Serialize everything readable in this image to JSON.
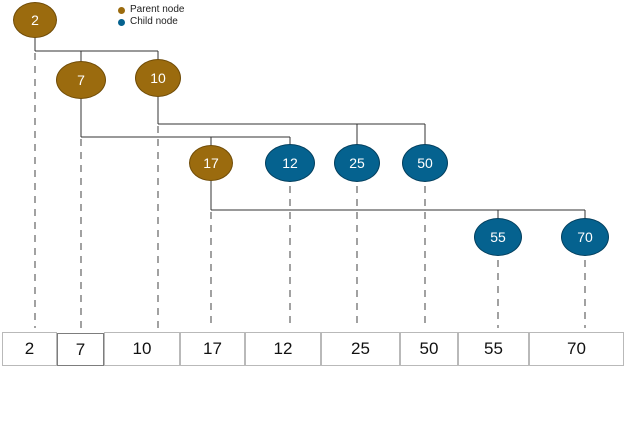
{
  "legend": {
    "parent_label": "Parent node",
    "child_label": "Child node"
  },
  "colors": {
    "parent": "#9b6b0e",
    "parent_border": "#6f4b06",
    "child": "#05628f",
    "child_border": "#033f5e",
    "line": "#333333"
  },
  "nodes": [
    {
      "id": "n2",
      "label": "2",
      "kind": "parent"
    },
    {
      "id": "n7",
      "label": "7",
      "kind": "parent"
    },
    {
      "id": "n10",
      "label": "10",
      "kind": "parent"
    },
    {
      "id": "n17",
      "label": "17",
      "kind": "parent"
    },
    {
      "id": "n12",
      "label": "12",
      "kind": "child"
    },
    {
      "id": "n25",
      "label": "25",
      "kind": "child"
    },
    {
      "id": "n50",
      "label": "50",
      "kind": "child"
    },
    {
      "id": "n55",
      "label": "55",
      "kind": "child"
    },
    {
      "id": "n70",
      "label": "70",
      "kind": "child"
    }
  ],
  "edges": [
    {
      "from": "n2",
      "to": [
        "n7",
        "n10"
      ]
    },
    {
      "from": "n7",
      "to": [
        "n17",
        "n12"
      ]
    },
    {
      "from": "n10",
      "to": [
        "n25",
        "n50"
      ]
    },
    {
      "from": "n17",
      "to": [
        "n55",
        "n70"
      ]
    }
  ],
  "array_values": [
    "2",
    "7",
    "10",
    "17",
    "12",
    "25",
    "50",
    "55",
    "70"
  ]
}
